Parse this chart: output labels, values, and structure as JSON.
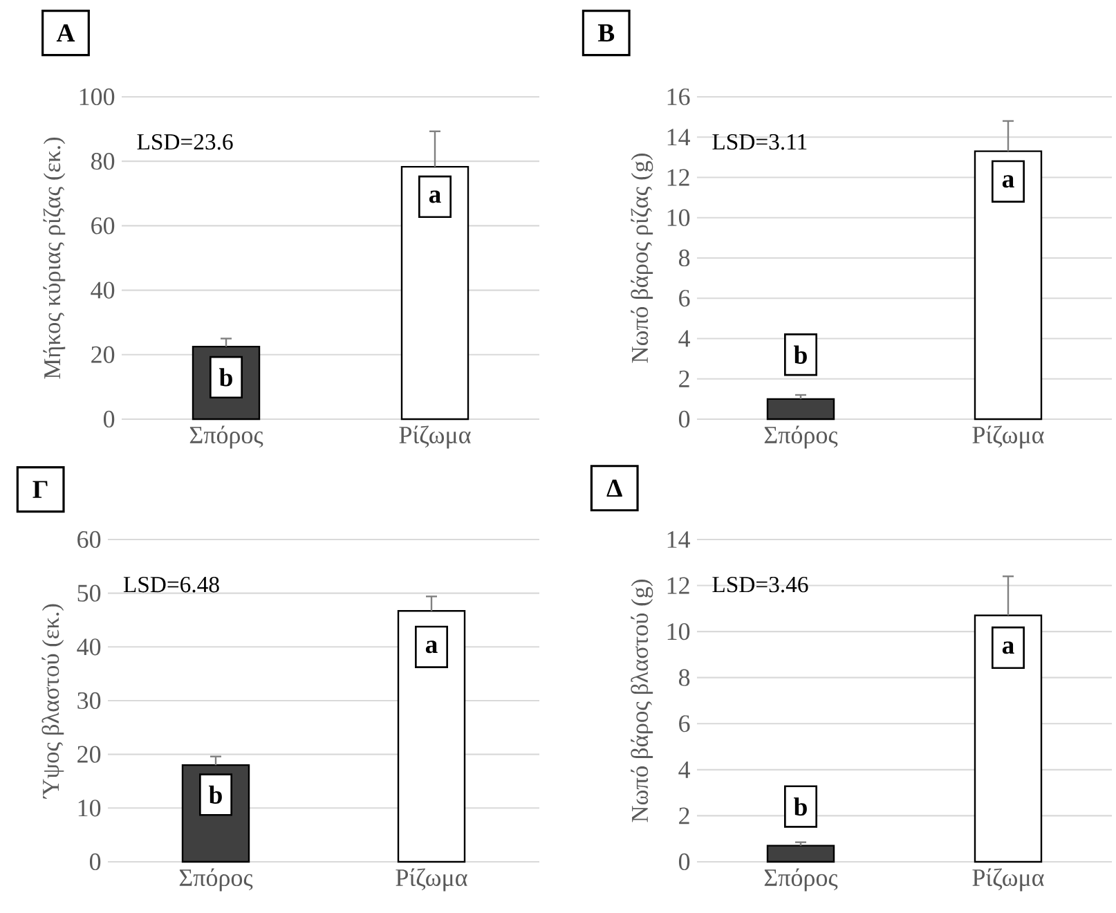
{
  "chart_data": [
    {
      "type": "bar",
      "title": "A",
      "ylabel": "Μήκος κύριας ρίζας (εκ.)",
      "categories": [
        "Σπόρος",
        "Ρίζωμα"
      ],
      "values": [
        22.5,
        78.3
      ],
      "colors": [
        "#404040",
        "#ffffff"
      ],
      "errors": [
        2.5,
        11
      ],
      "ylim": [
        0,
        100
      ],
      "yticks": [
        0,
        20,
        40,
        60,
        80,
        100
      ],
      "grid": "y",
      "annotations": [
        "LSD=23.6",
        {
          "text": "b",
          "x": "Σπόρος",
          "y": 13
        },
        {
          "text": "a",
          "x": "Ρίζωμα",
          "y": 69
        }
      ]
    },
    {
      "type": "bar",
      "title": "B",
      "ylabel": "Νωπό βάρος ρίζας (g)",
      "categories": [
        "Σπόρος",
        "Ρίζωμα"
      ],
      "values": [
        1.0,
        13.3
      ],
      "colors": [
        "#404040",
        "#ffffff"
      ],
      "errors": [
        0.2,
        1.5
      ],
      "ylim": [
        0,
        16
      ],
      "yticks": [
        0,
        2,
        4,
        6,
        8,
        10,
        12,
        14,
        16
      ],
      "grid": "y",
      "annotations": [
        "LSD=3.11",
        {
          "text": "b",
          "x": "Σπόρος",
          "y": 3.2
        },
        {
          "text": "a",
          "x": "Ρίζωμα",
          "y": 11.8
        }
      ]
    },
    {
      "type": "bar",
      "title": "Γ",
      "ylabel": "Ύψος βλαστού (εκ.)",
      "categories": [
        "Σπόρος",
        "Ρίζωμα"
      ],
      "values": [
        18,
        46.7
      ],
      "colors": [
        "#404040",
        "#ffffff"
      ],
      "errors": [
        1.6,
        2.7
      ],
      "ylim": [
        0,
        60
      ],
      "yticks": [
        0,
        10,
        20,
        30,
        40,
        50,
        60
      ],
      "grid": "y",
      "annotations": [
        "LSD=6.48",
        {
          "text": "b",
          "x": "Σπόρος",
          "y": 12.5
        },
        {
          "text": "a",
          "x": "Ρίζωμα",
          "y": 40
        }
      ]
    },
    {
      "type": "bar",
      "title": "Δ",
      "ylabel": "Νωπό βάρος βλαστού (g)",
      "categories": [
        "Σπόρος",
        "Ρίζωμα"
      ],
      "values": [
        0.7,
        10.7
      ],
      "colors": [
        "#404040",
        "#ffffff"
      ],
      "errors": [
        0.15,
        1.7
      ],
      "ylim": [
        0,
        14
      ],
      "yticks": [
        0,
        2,
        4,
        6,
        8,
        10,
        12,
        14
      ],
      "grid": "y",
      "annotations": [
        "LSD=3.46",
        {
          "text": "b",
          "x": "Σπόρος",
          "y": 2.4
        },
        {
          "text": "a",
          "x": "Ρίζωμα",
          "y": 9.3
        }
      ]
    }
  ]
}
